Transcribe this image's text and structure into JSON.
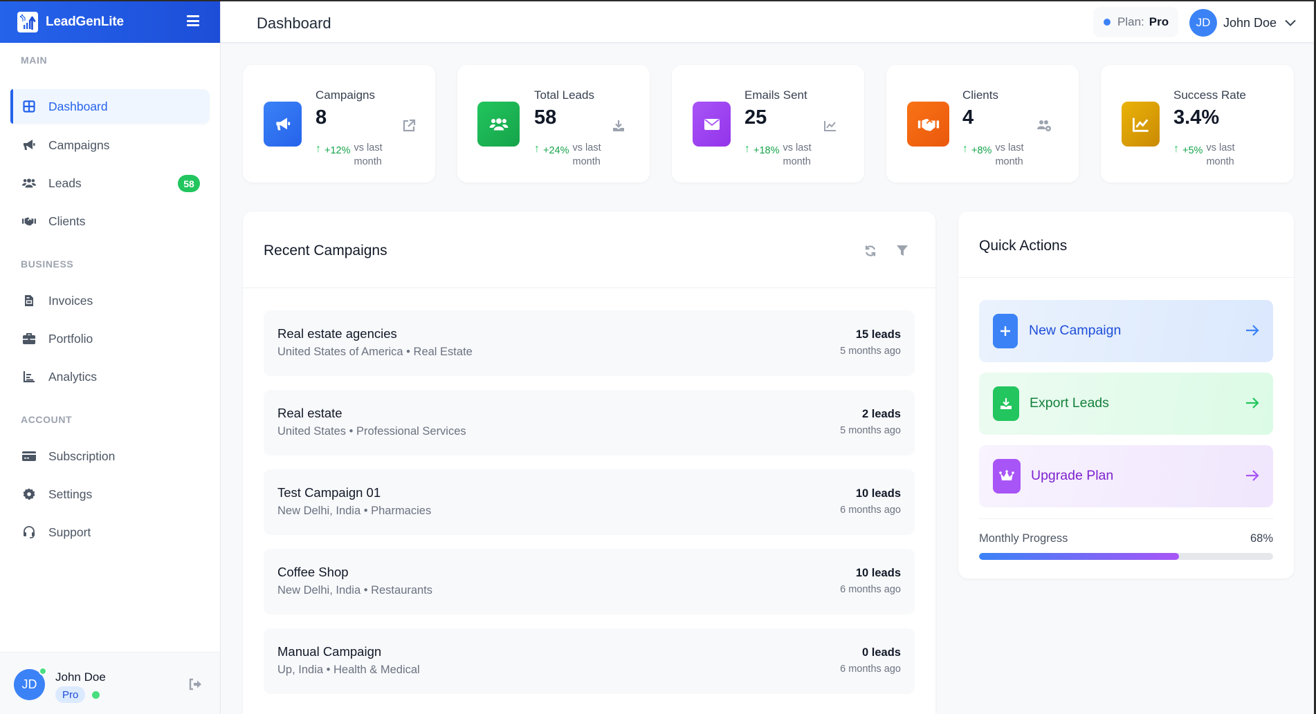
{
  "app": {
    "name": "LeadGenLite"
  },
  "header": {
    "title": "Dashboard",
    "plan_label": "Plan:",
    "plan_value": "Pro",
    "user_initials": "JD",
    "user_name": "John Doe"
  },
  "sidebar": {
    "sections": [
      {
        "title": "MAIN",
        "items": [
          {
            "label": "Dashboard",
            "icon": "grid-icon",
            "active": true
          },
          {
            "label": "Campaigns",
            "icon": "megaphone-icon"
          },
          {
            "label": "Leads",
            "icon": "users-icon",
            "badge": "58"
          },
          {
            "label": "Clients",
            "icon": "handshake-icon"
          }
        ]
      },
      {
        "title": "BUSINESS",
        "items": [
          {
            "label": "Invoices",
            "icon": "invoice-icon"
          },
          {
            "label": "Portfolio",
            "icon": "briefcase-icon"
          },
          {
            "label": "Analytics",
            "icon": "chart-icon"
          }
        ]
      },
      {
        "title": "ACCOUNT",
        "items": [
          {
            "label": "Subscription",
            "icon": "credit-card-icon"
          },
          {
            "label": "Settings",
            "icon": "gear-icon"
          },
          {
            "label": "Support",
            "icon": "headset-icon"
          }
        ]
      }
    ],
    "footer": {
      "initials": "JD",
      "name": "John Doe",
      "plan": "Pro"
    }
  },
  "stats": [
    {
      "label": "Campaigns",
      "value": "8",
      "change": "+12%",
      "change_note": "vs last month",
      "color": "#3b82f6",
      "icon": "megaphone-icon",
      "action_icon": "external-link-icon"
    },
    {
      "label": "Total Leads",
      "value": "58",
      "change": "+24%",
      "change_note": "vs last month",
      "color": "#22c55e",
      "icon": "users-icon",
      "action_icon": "download-icon"
    },
    {
      "label": "Emails Sent",
      "value": "25",
      "change": "+18%",
      "change_note": "vs last month",
      "color": "#a855f7",
      "icon": "envelope-icon",
      "action_icon": "line-chart-icon"
    },
    {
      "label": "Clients",
      "value": "4",
      "change": "+8%",
      "change_note": "vs last month",
      "color": "#f97316",
      "icon": "handshake-icon",
      "action_icon": "users-gear-icon"
    },
    {
      "label": "Success Rate",
      "value": "3.4%",
      "change": "+5%",
      "change_note": "vs last month",
      "color": "#eab308",
      "icon": "line-chart-icon",
      "action_icon": null
    }
  ],
  "recent_campaigns": {
    "title": "Recent Campaigns",
    "items": [
      {
        "name": "Real estate agencies",
        "meta": "United States of America • Real Estate",
        "leads": "15 leads",
        "ago": "5 months ago"
      },
      {
        "name": "Real estate",
        "meta": "United States • Professional Services",
        "leads": "2 leads",
        "ago": "5 months ago"
      },
      {
        "name": "Test Campaign 01",
        "meta": "New Delhi, India • Pharmacies",
        "leads": "10 leads",
        "ago": "6 months ago"
      },
      {
        "name": "Coffee Shop",
        "meta": "New Delhi, India • Restaurants",
        "leads": "10 leads",
        "ago": "6 months ago"
      },
      {
        "name": "Manual Campaign",
        "meta": "Up, India • Health & Medical",
        "leads": "0 leads",
        "ago": "6 months ago"
      }
    ]
  },
  "quick_actions": {
    "title": "Quick Actions",
    "items": [
      {
        "label": "New Campaign",
        "icon": "plus-icon"
      },
      {
        "label": "Export Leads",
        "icon": "download-icon"
      },
      {
        "label": "Upgrade Plan",
        "icon": "crown-icon"
      }
    ],
    "progress_label": "Monthly Progress",
    "progress_value": "68%",
    "progress_percent": 68
  }
}
